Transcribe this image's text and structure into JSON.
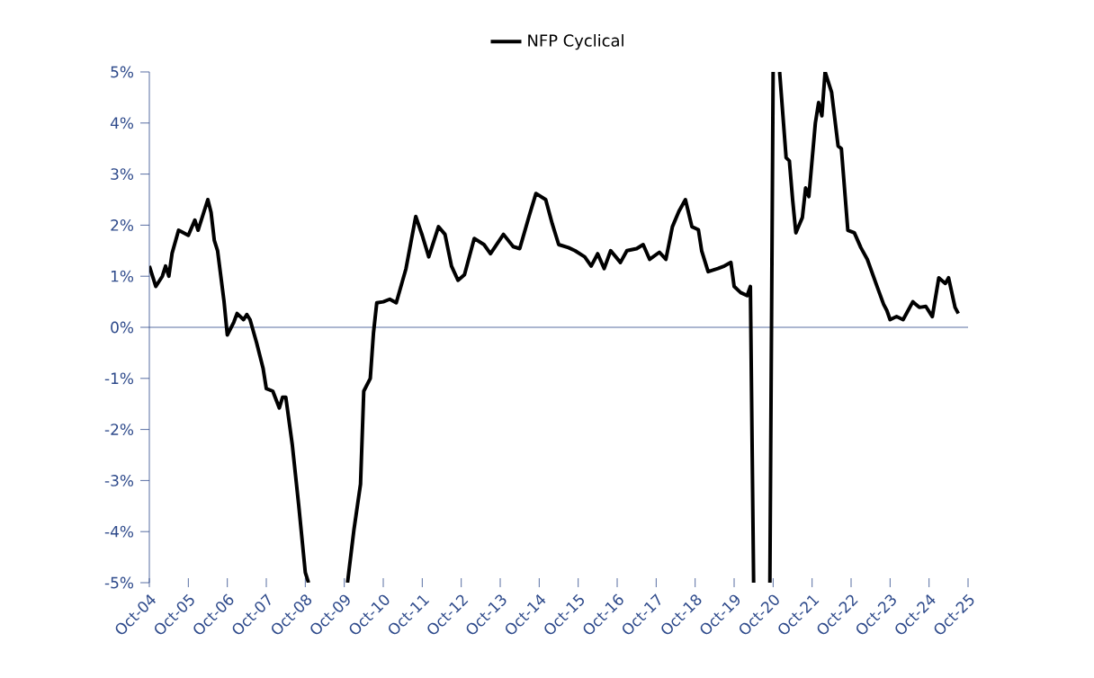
{
  "chart_data": {
    "type": "line",
    "legend": "top",
    "marker": "none",
    "line_style": "solid",
    "grid": false,
    "xlim": [
      "2004-10",
      "2025-10"
    ],
    "ylim": [
      -5,
      5
    ],
    "ref_lines": [
      {
        "axis": "y",
        "value": 0,
        "color": "#2e4a8b",
        "line_style": "solid"
      }
    ],
    "yticks": [
      {
        "value": -5,
        "label": "-5%"
      },
      {
        "value": -4,
        "label": "-4%"
      },
      {
        "value": -3,
        "label": "-3%"
      },
      {
        "value": -2,
        "label": "-2%"
      },
      {
        "value": -1,
        "label": "-1%"
      },
      {
        "value": 0,
        "label": "0%"
      },
      {
        "value": 1,
        "label": "1%"
      },
      {
        "value": 2,
        "label": "2%"
      },
      {
        "value": 3,
        "label": "3%"
      },
      {
        "value": 4,
        "label": "4%"
      },
      {
        "value": 5,
        "label": "5%"
      }
    ],
    "xticks": [
      {
        "value": "2004-10",
        "label": "Oct-04"
      },
      {
        "value": "2005-10",
        "label": "Oct-05"
      },
      {
        "value": "2006-10",
        "label": "Oct-06"
      },
      {
        "value": "2007-10",
        "label": "Oct-07"
      },
      {
        "value": "2008-10",
        "label": "Oct-08"
      },
      {
        "value": "2009-10",
        "label": "Oct-09"
      },
      {
        "value": "2010-10",
        "label": "Oct-10"
      },
      {
        "value": "2011-10",
        "label": "Oct-11"
      },
      {
        "value": "2012-10",
        "label": "Oct-12"
      },
      {
        "value": "2013-10",
        "label": "Oct-13"
      },
      {
        "value": "2014-10",
        "label": "Oct-14"
      },
      {
        "value": "2015-10",
        "label": "Oct-15"
      },
      {
        "value": "2016-10",
        "label": "Oct-16"
      },
      {
        "value": "2017-10",
        "label": "Oct-17"
      },
      {
        "value": "2018-10",
        "label": "Oct-18"
      },
      {
        "value": "2019-10",
        "label": "Oct-19"
      },
      {
        "value": "2020-10",
        "label": "Oct-20"
      },
      {
        "value": "2021-10",
        "label": "Oct-21"
      },
      {
        "value": "2022-10",
        "label": "Oct-22"
      },
      {
        "value": "2023-10",
        "label": "Oct-23"
      },
      {
        "value": "2024-10",
        "label": "Oct-24"
      },
      {
        "value": "2025-10",
        "label": "Oct-25"
      }
    ],
    "x": [
      "2004-10",
      "2004-12",
      "2005-02",
      "2005-03",
      "2005-04",
      "2005-05",
      "2005-07",
      "2005-10",
      "2005-12",
      "2006-01",
      "2006-04",
      "2006-05",
      "2006-06",
      "2006-07",
      "2006-09",
      "2006-10",
      "2006-12",
      "2007-01",
      "2007-03",
      "2007-04",
      "2007-05",
      "2007-07",
      "2007-09",
      "2007-10",
      "2007-12",
      "2008-02",
      "2008-03",
      "2008-04",
      "2008-06",
      "2008-08",
      "2008-10",
      "2008-11",
      "2009-05",
      "2009-11",
      "2010-01",
      "2010-03",
      "2010-04",
      "2010-06",
      "2010-07",
      "2010-08",
      "2010-10",
      "2010-12",
      "2011-02",
      "2011-05",
      "2011-08",
      "2011-10",
      "2011-12",
      "2012-03",
      "2012-05",
      "2012-07",
      "2012-09",
      "2012-11",
      "2013-02",
      "2013-05",
      "2013-07",
      "2013-11",
      "2014-02",
      "2014-04",
      "2014-07",
      "2014-09",
      "2014-12",
      "2015-02",
      "2015-04",
      "2015-07",
      "2015-09",
      "2015-12",
      "2016-02",
      "2016-04",
      "2016-06",
      "2016-08",
      "2016-11",
      "2017-01",
      "2017-04",
      "2017-06",
      "2017-08",
      "2017-11",
      "2018-01",
      "2018-03",
      "2018-05",
      "2018-07",
      "2018-09",
      "2018-11",
      "2018-12",
      "2019-02",
      "2019-05",
      "2019-07",
      "2019-09",
      "2019-10",
      "2019-12",
      "2020-02",
      "2020-03",
      "2020-04",
      "2020-06",
      "2020-09",
      "2020-10",
      "2020-11",
      "2020-12",
      "2021-02",
      "2021-03",
      "2021-04",
      "2021-05",
      "2021-07",
      "2021-08",
      "2021-09",
      "2021-11",
      "2021-12",
      "2022-01",
      "2022-02",
      "2022-04",
      "2022-06",
      "2022-07",
      "2022-09",
      "2022-11",
      "2023-01",
      "2023-03",
      "2023-06",
      "2023-08",
      "2023-09",
      "2023-10",
      "2023-12",
      "2024-02",
      "2024-05",
      "2024-07",
      "2024-09",
      "2024-11",
      "2025-01",
      "2025-03",
      "2025-04",
      "2025-06",
      "2025-07"
    ],
    "series": [
      {
        "name": "NFP Cyclical",
        "color": "#000000",
        "values": [
          1.2,
          0.8,
          1.0,
          1.2,
          1.0,
          1.45,
          1.9,
          1.8,
          2.1,
          1.9,
          2.5,
          2.25,
          1.7,
          1.5,
          0.5,
          -0.15,
          0.1,
          0.27,
          0.15,
          0.25,
          0.15,
          -0.3,
          -0.8,
          -1.2,
          -1.25,
          -1.58,
          -1.37,
          -1.37,
          -2.3,
          -3.5,
          -4.8,
          -5,
          null,
          -5,
          -3.95,
          -3.07,
          -1.25,
          -1.0,
          -0.1,
          0.48,
          0.5,
          0.55,
          0.48,
          1.15,
          2.17,
          1.8,
          1.38,
          1.97,
          1.82,
          1.2,
          0.92,
          1.03,
          1.74,
          1.62,
          1.44,
          1.82,
          1.58,
          1.54,
          2.2,
          2.62,
          2.5,
          2.03,
          1.62,
          1.56,
          1.5,
          1.38,
          1.2,
          1.44,
          1.15,
          1.5,
          1.27,
          1.5,
          1.54,
          1.62,
          1.33,
          1.47,
          1.33,
          1.97,
          2.27,
          2.5,
          1.97,
          1.91,
          1.5,
          1.09,
          1.15,
          1.2,
          1.27,
          0.8,
          0.68,
          0.62,
          0.8,
          -5,
          null,
          -5,
          5,
          null,
          5,
          3.32,
          3.26,
          2.5,
          1.85,
          2.15,
          2.73,
          2.56,
          4.0,
          4.4,
          4.14,
          5.0,
          4.6,
          3.55,
          3.5,
          1.9,
          1.85,
          1.56,
          1.33,
          0.8,
          0.45,
          0.33,
          0.15,
          0.21,
          0.15,
          0.5,
          0.39,
          0.41,
          0.21,
          0.97,
          0.86,
          0.97,
          0.39,
          0.27
        ]
      }
    ]
  }
}
